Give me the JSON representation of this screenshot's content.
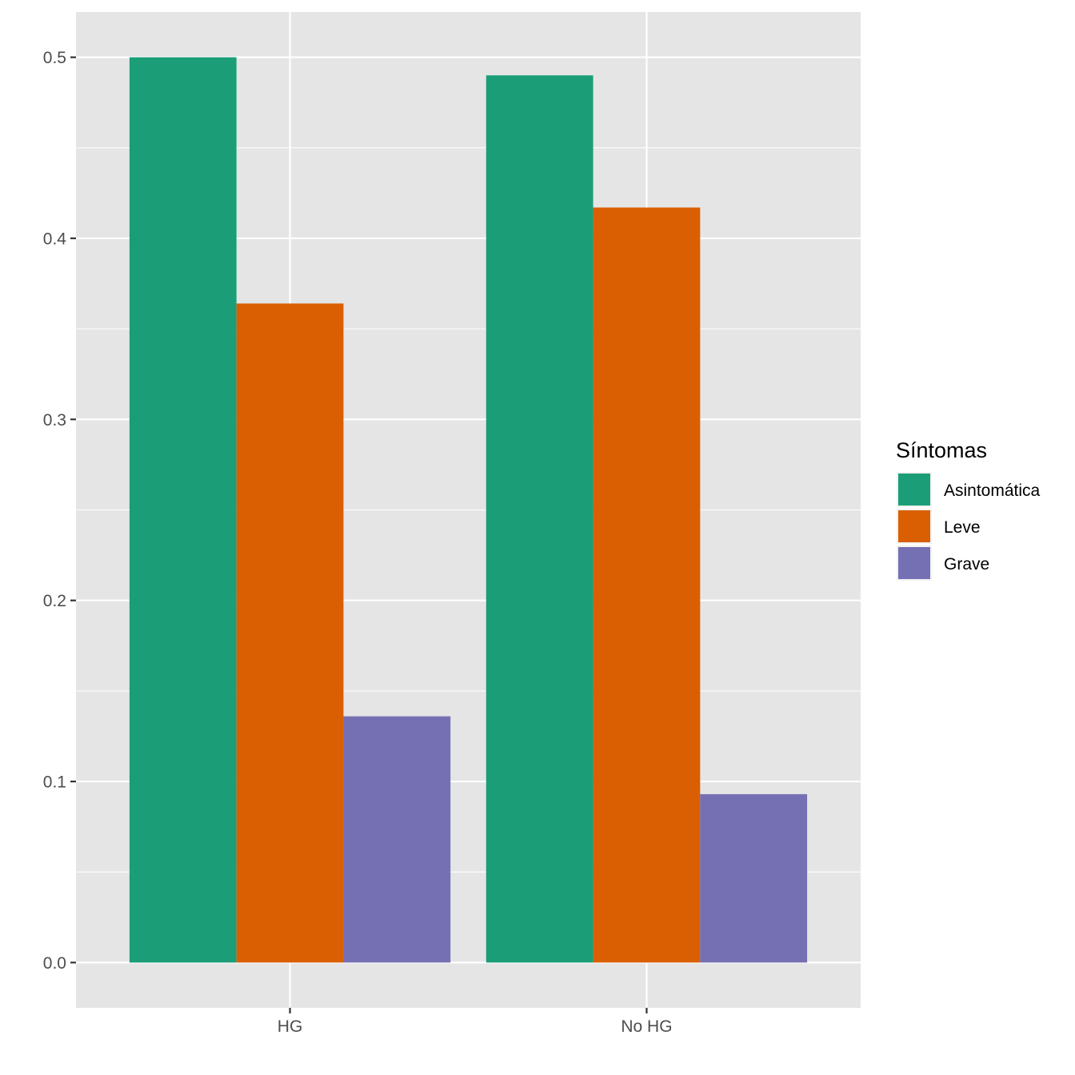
{
  "chart_data": {
    "type": "bar",
    "title": "",
    "xlabel": "",
    "ylabel": "",
    "categories": [
      "HG",
      "No HG"
    ],
    "series": [
      {
        "name": "Asintomática",
        "color": "#1B9E77",
        "values": [
          0.5,
          0.49
        ]
      },
      {
        "name": "Leve",
        "color": "#D95F02",
        "values": [
          0.364,
          0.417
        ]
      },
      {
        "name": "Grave",
        "color": "#7570B3",
        "values": [
          0.136,
          0.093
        ]
      }
    ],
    "ylim": [
      -0.025,
      0.525
    ],
    "yticks": [
      0.0,
      0.1,
      0.2,
      0.3,
      0.4,
      0.5
    ],
    "ytick_labels": [
      "0.0",
      "0.1",
      "0.2",
      "0.3",
      "0.4",
      "0.5"
    ],
    "grid": true,
    "panel_background": "#E5E5E5",
    "legend": {
      "title": "Síntomas",
      "position": "right"
    }
  }
}
